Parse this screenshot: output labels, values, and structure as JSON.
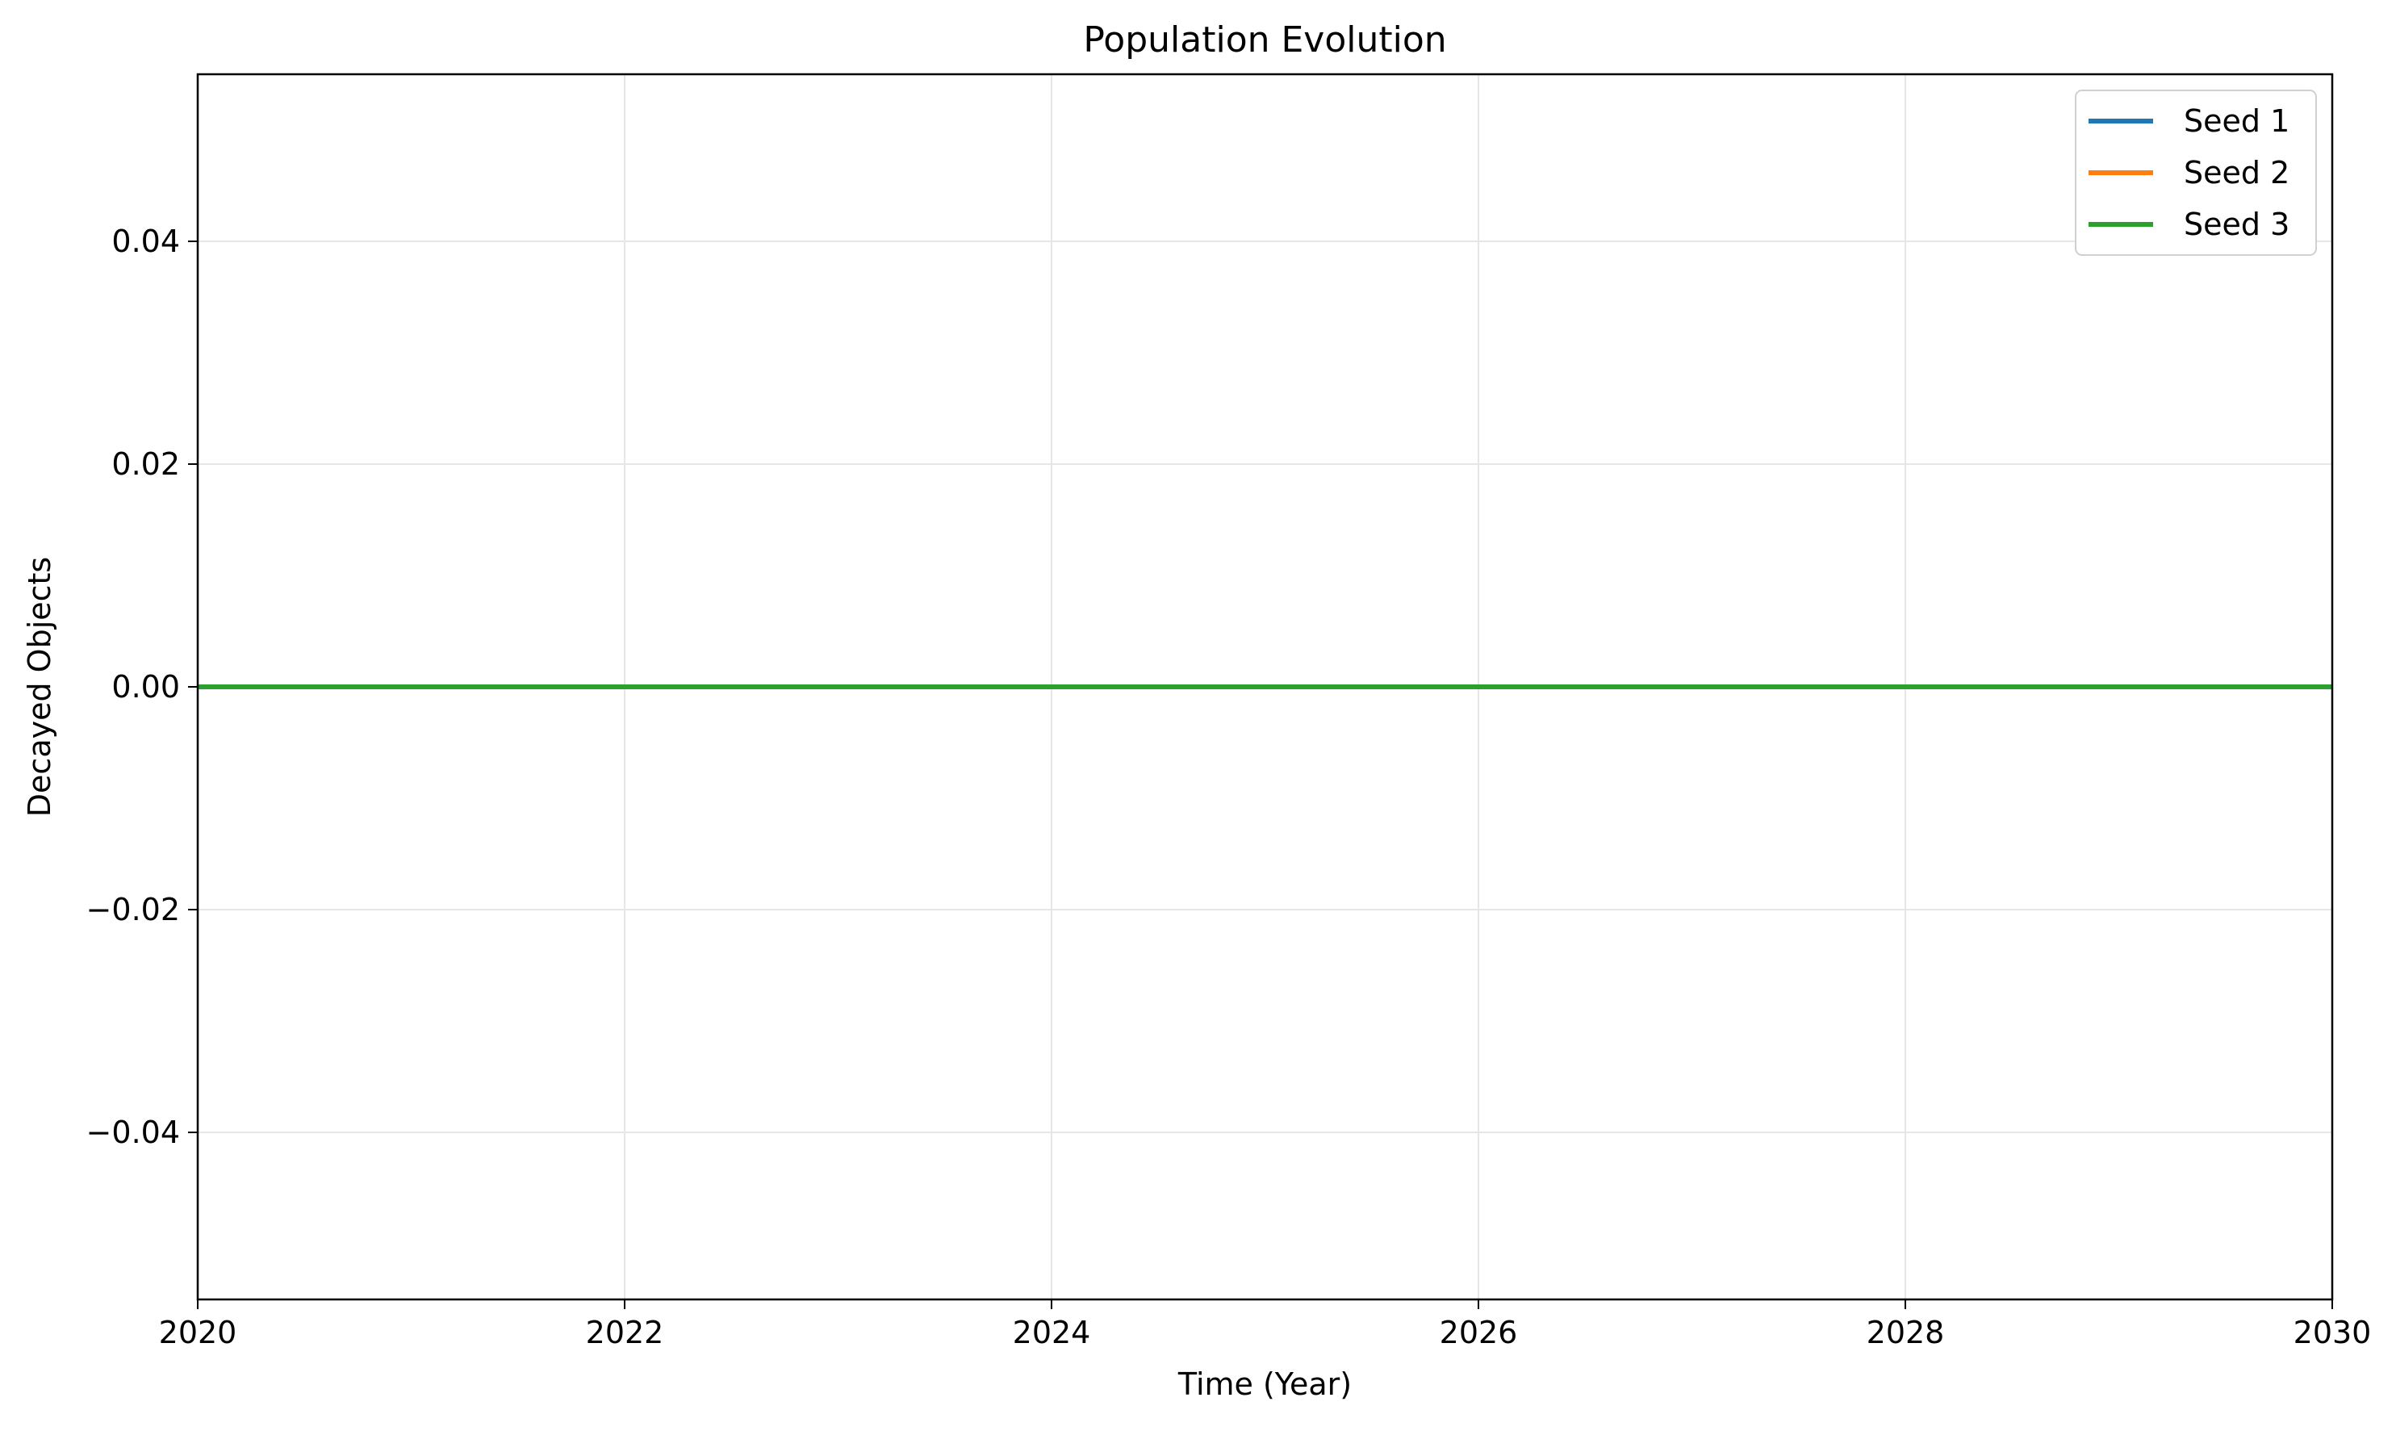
{
  "chart_data": {
    "type": "line",
    "title": "Population Evolution",
    "xlabel": "Time (Year)",
    "ylabel": "Decayed Objects",
    "xlim": [
      2020,
      2030
    ],
    "ylim": [
      -0.055,
      0.055
    ],
    "xticks": [
      2020,
      2022,
      2024,
      2026,
      2028,
      2030
    ],
    "xtick_labels": [
      "2020",
      "2022",
      "2024",
      "2026",
      "2028",
      "2030"
    ],
    "yticks": [
      -0.04,
      -0.02,
      0.0,
      0.02,
      0.04
    ],
    "ytick_labels": [
      "−0.04",
      "−0.02",
      "0.00",
      "0.02",
      "0.04"
    ],
    "grid": true,
    "legend_position": "top-right",
    "series": [
      {
        "name": "Seed 1",
        "color": "#1f77b4",
        "x": [
          2020,
          2030
        ],
        "y": [
          0,
          0
        ]
      },
      {
        "name": "Seed 2",
        "color": "#ff7f0e",
        "x": [
          2020,
          2030
        ],
        "y": [
          0,
          0
        ]
      },
      {
        "name": "Seed 3",
        "color": "#2ca02c",
        "x": [
          2020,
          2030
        ],
        "y": [
          0,
          0
        ]
      }
    ]
  }
}
